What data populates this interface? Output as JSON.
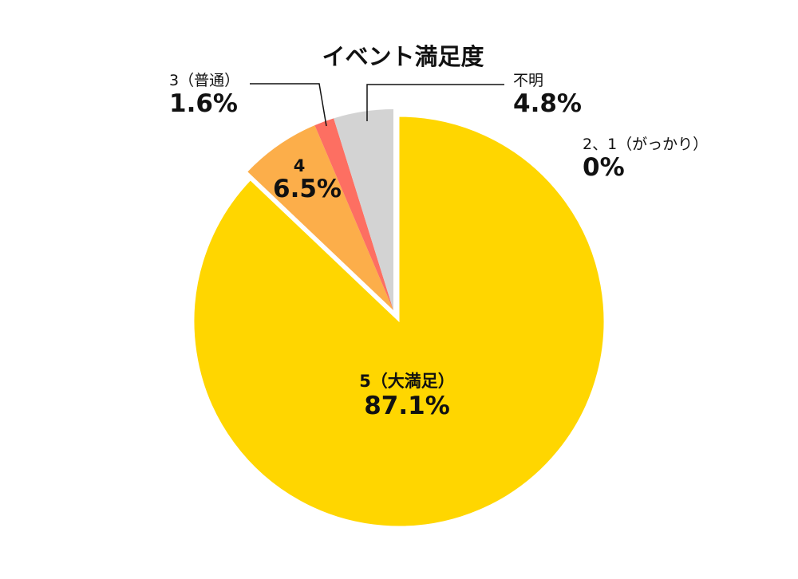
{
  "chart_data": {
    "type": "pie",
    "title": "イベント満足度",
    "start_angle": "12 o'clock, clockwise",
    "slices": [
      {
        "label": "5（大満足）",
        "value": 87.1,
        "display": "87.1%",
        "color": "#FFD600",
        "exploded": false
      },
      {
        "label": "4",
        "value": 6.5,
        "display": "6.5%",
        "color": "#FCAE4A",
        "exploded": true
      },
      {
        "label": "3（普通）",
        "value": 1.6,
        "display": "1.6%",
        "color": "#FD6F62",
        "exploded": true
      },
      {
        "label": "不明",
        "value": 4.8,
        "display": "4.8%",
        "color": "#D3D3D3",
        "exploded": true
      },
      {
        "label": "2、1（がっかり）",
        "value": 0,
        "display": "0%",
        "color": "#FFFFFF",
        "exploded": false
      }
    ],
    "categories": [
      "5（大満足）",
      "4",
      "3（普通）",
      "不明",
      "2、1（がっかり）"
    ],
    "values": [
      87.1,
      6.5,
      1.6,
      4.8,
      0
    ],
    "legend": "none (direct labels with leader lines)"
  },
  "labels": {
    "title": "イベント満足度",
    "s5": {
      "name": "5（大満足）",
      "val": "87.1%"
    },
    "s4": {
      "name": "4",
      "val": "6.5%"
    },
    "s3": {
      "name": "3（普通）",
      "val": "1.6%"
    },
    "unknown": {
      "name": "不明",
      "val": "4.8%"
    },
    "s21": {
      "name": "2、1（がっかり）",
      "val": "0%"
    }
  }
}
